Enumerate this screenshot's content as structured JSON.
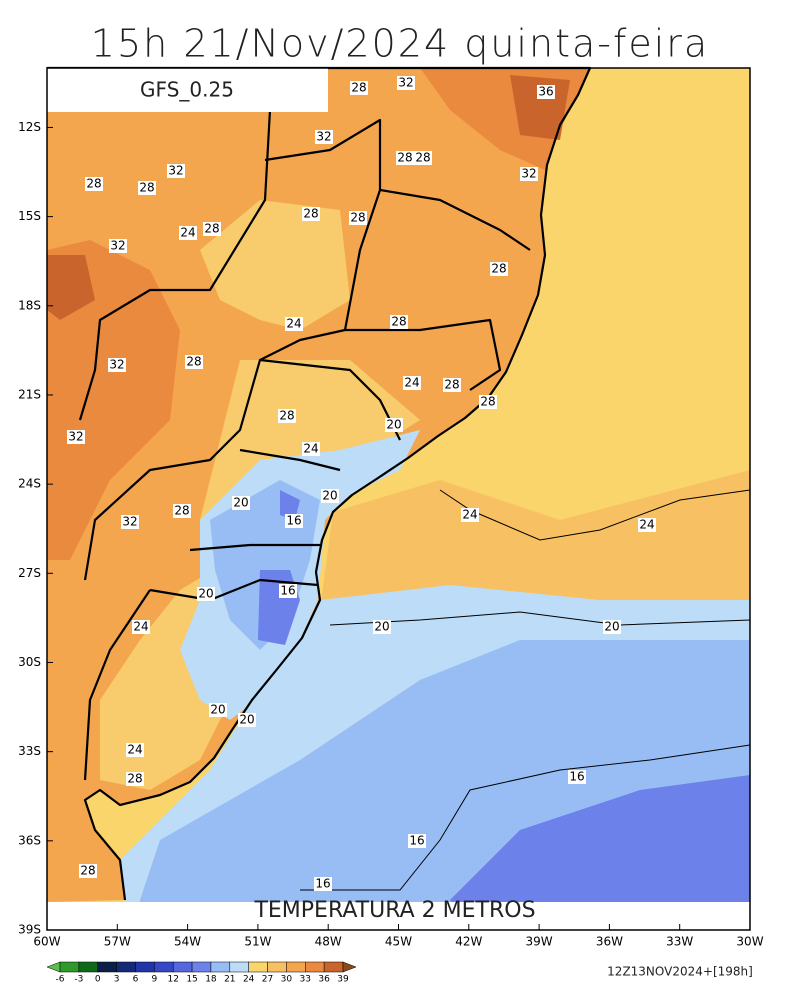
{
  "header": {
    "title": "15h 21/Nov/2024 quinta-feira",
    "model": "GFS_0.25"
  },
  "map": {
    "field_label": "TEMPERATURA 2 METROS",
    "lon_range": [
      -60,
      -30
    ],
    "lat_range": [
      -39,
      -10
    ],
    "lon_ticks": [
      {
        "value": -60,
        "label": "60W"
      },
      {
        "value": -57,
        "label": "57W"
      },
      {
        "value": -54,
        "label": "54W"
      },
      {
        "value": -51,
        "label": "51W"
      },
      {
        "value": -48,
        "label": "48W"
      },
      {
        "value": -45,
        "label": "45W"
      },
      {
        "value": -42,
        "label": "42W"
      },
      {
        "value": -39,
        "label": "39W"
      },
      {
        "value": -36,
        "label": "36W"
      },
      {
        "value": -33,
        "label": "33W"
      },
      {
        "value": -30,
        "label": "30W"
      }
    ],
    "lat_ticks": [
      {
        "value": -12,
        "label": "12S"
      },
      {
        "value": -15,
        "label": "15S"
      },
      {
        "value": -18,
        "label": "18S"
      },
      {
        "value": -21,
        "label": "21S"
      },
      {
        "value": -24,
        "label": "24S"
      },
      {
        "value": -27,
        "label": "27S"
      },
      {
        "value": -30,
        "label": "30S"
      },
      {
        "value": -33,
        "label": "33S"
      },
      {
        "value": -36,
        "label": "36S"
      },
      {
        "value": -39,
        "label": "39S"
      }
    ],
    "contour_labels": [
      "28",
      "32",
      "36",
      "32",
      "28",
      "28",
      "32",
      "28",
      "28",
      "32",
      "28",
      "28",
      "24",
      "28",
      "32",
      "28",
      "28",
      "24",
      "32",
      "28",
      "24",
      "28",
      "28",
      "28",
      "20",
      "32",
      "24",
      "20",
      "20",
      "24",
      "24",
      "16",
      "32",
      "28",
      "16",
      "20",
      "24",
      "20",
      "20",
      "20",
      "20",
      "24",
      "28",
      "16",
      "16",
      "28",
      "16"
    ]
  },
  "colorbar": {
    "levels": [
      -6,
      -3,
      0,
      3,
      6,
      9,
      12,
      15,
      18,
      21,
      24,
      27,
      30,
      33,
      36,
      39
    ],
    "colors": [
      "#5cbf4c",
      "#2f9a2c",
      "#0e6a18",
      "#0b1f4a",
      "#142a78",
      "#2036a8",
      "#3448c8",
      "#5566de",
      "#6c82ea",
      "#98bdf4",
      "#bcdcf7",
      "#f9d56c",
      "#f7c062",
      "#f4a64e",
      "#ea8a3e",
      "#c9652c",
      "#8a4a1c"
    ]
  },
  "run_info": "12Z13NOV2024+[198h]"
}
